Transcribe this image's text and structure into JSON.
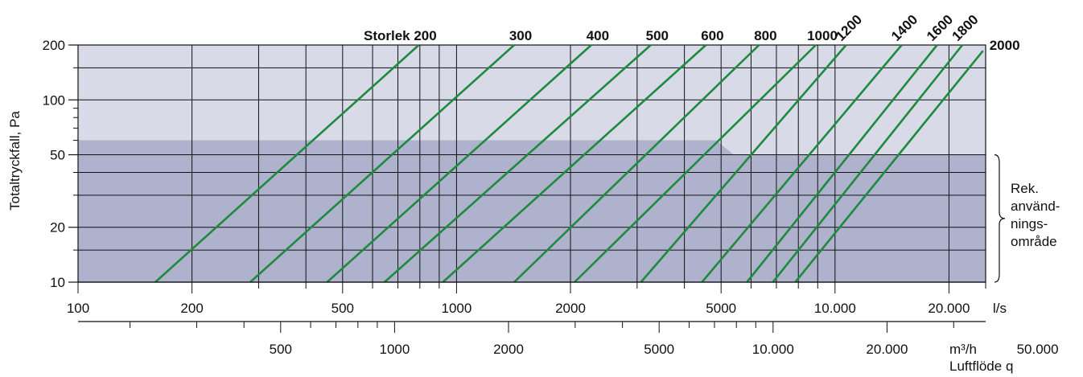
{
  "chart_data": {
    "type": "line",
    "x_scale": "log",
    "y_scale": "log",
    "xlabel": "Luftflöde q",
    "ylabel": "Totaltryckfall, Pa",
    "size_label": "Storlek",
    "xlim": [
      100,
      25000
    ],
    "ylim": [
      10,
      200
    ],
    "x_ticks_ls": [
      {
        "value": 100,
        "label": "100"
      },
      {
        "value": 200,
        "label": "200"
      },
      {
        "value": 500,
        "label": "500"
      },
      {
        "value": 1000,
        "label": "1000"
      },
      {
        "value": 2000,
        "label": "2000"
      },
      {
        "value": 5000,
        "label": "5000"
      },
      {
        "value": 10000,
        "label": "10.000"
      },
      {
        "value": 20000,
        "label": "20.000"
      }
    ],
    "x_unit_ls": "l/s",
    "x_ticks_m3h": [
      {
        "value": 500,
        "label": "500"
      },
      {
        "value": 1000,
        "label": "1000"
      },
      {
        "value": 2000,
        "label": "2000"
      },
      {
        "value": 5000,
        "label": "5000"
      },
      {
        "value": 10000,
        "label": "10.000"
      },
      {
        "value": 20000,
        "label": "20.000"
      },
      {
        "value": 50000,
        "label": "50.000"
      }
    ],
    "x_unit_m3h": "m³/h",
    "y_ticks": [
      {
        "value": 10,
        "label": "10"
      },
      {
        "value": 20,
        "label": "20"
      },
      {
        "value": 50,
        "label": "50"
      },
      {
        "value": 100,
        "label": "100"
      },
      {
        "value": 200,
        "label": "200"
      }
    ],
    "series": [
      {
        "name": "200",
        "x": [
          160,
          795
        ],
        "y": [
          10,
          200
        ]
      },
      {
        "name": "300",
        "x": [
          285,
          1420
        ],
        "y": [
          10,
          200
        ]
      },
      {
        "name": "400",
        "x": [
          455,
          2270
        ],
        "y": [
          10,
          200
        ]
      },
      {
        "name": "500",
        "x": [
          645,
          3260
        ],
        "y": [
          10,
          200
        ]
      },
      {
        "name": "600",
        "x": [
          920,
          4560
        ],
        "y": [
          10,
          200
        ]
      },
      {
        "name": "800",
        "x": [
          1420,
          6300
        ],
        "y": [
          10,
          200
        ]
      },
      {
        "name": "1000",
        "x": [
          2050,
          8900
        ],
        "y": [
          10,
          200
        ]
      },
      {
        "name": "1200",
        "x": [
          3070,
          10700
        ],
        "y": [
          10,
          200
        ]
      },
      {
        "name": "1400",
        "x": [
          4450,
          15000
        ],
        "y": [
          10,
          200
        ]
      },
      {
        "name": "1600",
        "x": [
          5850,
          18600
        ],
        "y": [
          10,
          200
        ]
      },
      {
        "name": "1800",
        "x": [
          6850,
          21700
        ],
        "y": [
          10,
          200
        ]
      },
      {
        "name": "2000",
        "x": [
          7850,
          24600
        ],
        "y": [
          10,
          186
        ]
      }
    ],
    "recommended_area": {
      "label": "Rek.\nanvänd-\nnings-\nområde",
      "lines": [
        "Rek.",
        "använd-",
        "nings-",
        "område"
      ],
      "y_range": [
        10,
        50
      ],
      "upper_level": 60,
      "color": "#aeb2cd"
    },
    "colors": {
      "series": "#1e8a3e",
      "upper_background": "#d8dbe7",
      "lower_background": "#aeb2cd",
      "grid": "#111111"
    }
  }
}
